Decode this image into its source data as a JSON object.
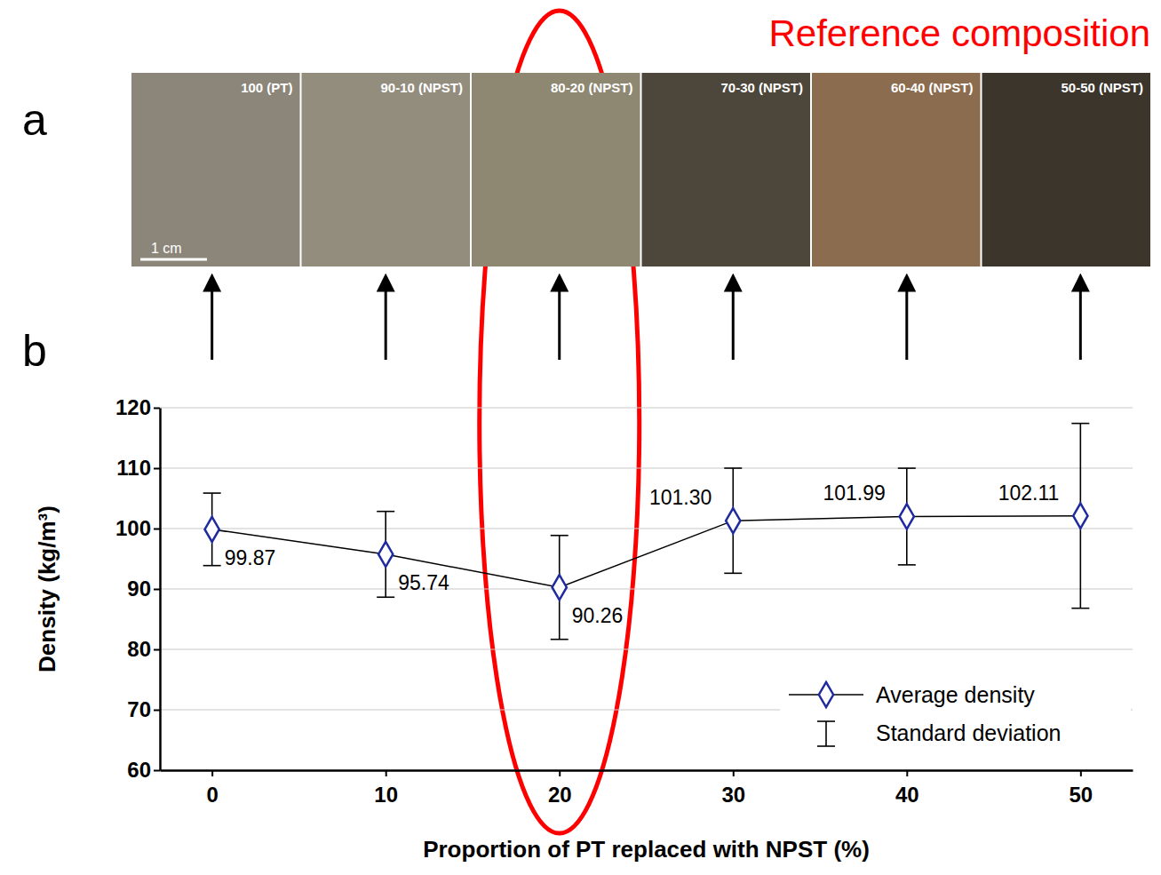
{
  "chart_data": {
    "type": "line",
    "panel_labels": [
      "a",
      "b"
    ],
    "images": {
      "labels": [
        "100 (PT)",
        "90-10 (NPST)",
        "80-20 (NPST)",
        "70-30 (NPST)",
        "60-40 (NPST)",
        "50-50 (NPST)"
      ],
      "scale_bar": "1 cm"
    },
    "x_label": "Proportion of PT replaced with NPST (%)",
    "y_label": "Density (kg/m³)",
    "x": [
      0,
      10,
      20,
      30,
      40,
      50
    ],
    "xlim": [
      -3,
      53
    ],
    "xticks": [
      0,
      10,
      20,
      30,
      40,
      50
    ],
    "ylim": [
      60,
      120
    ],
    "yticks": [
      60,
      70,
      80,
      90,
      100,
      110,
      120
    ],
    "grid": true,
    "series": [
      {
        "name": "Average density",
        "color": "#1f2a9e",
        "marker": "diamond",
        "values": [
          99.87,
          95.74,
          90.26,
          101.3,
          101.99,
          102.11
        ],
        "value_labels": [
          "99.87",
          "95.74",
          "90.26",
          "101.30",
          "101.99",
          "102.11"
        ],
        "errors": [
          6.0,
          7.1,
          8.6,
          8.7,
          8.0,
          15.3
        ],
        "error_name": "Standard deviation"
      }
    ],
    "data_labels": true,
    "legend": "lower right",
    "annotations": [
      {
        "text": "Reference composition",
        "x": 20,
        "color": "#ff0000"
      }
    ]
  }
}
